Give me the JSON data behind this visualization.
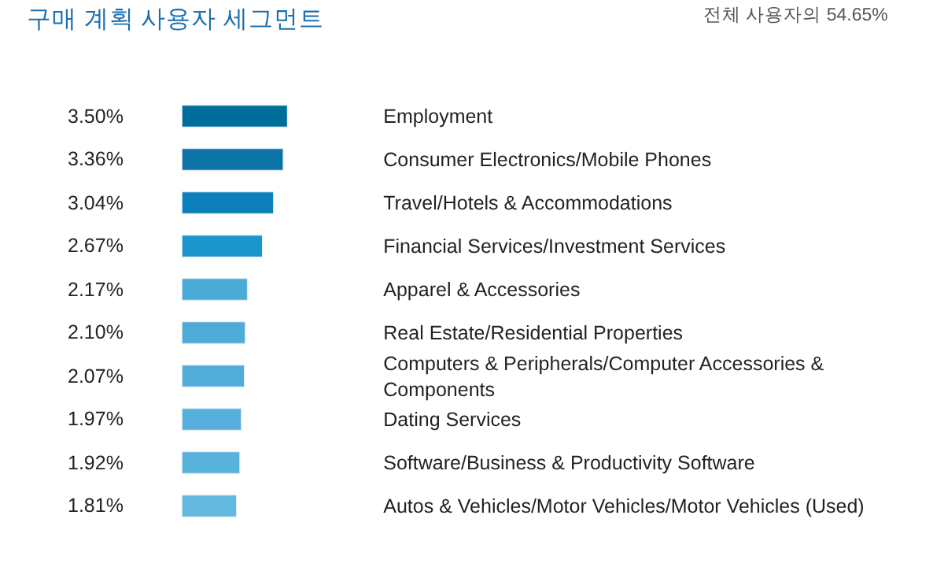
{
  "chart_data": {
    "type": "bar",
    "orientation": "horizontal",
    "title": "구매 계획 사용자 세그먼트",
    "subtitle": "전체 사용자의 54.65%",
    "categories": [
      "Employment",
      "Consumer Electronics/Mobile Phones",
      "Travel/Hotels & Accommodations",
      "Financial Services/Investment Services",
      "Apparel & Accessories",
      "Real Estate/Residential Properties",
      "Computers & Peripherals/Computer Accessories & Components",
      "Dating Services",
      "Software/Business & Productivity Software",
      "Autos & Vehicles/Motor Vehicles/Motor Vehicles (Used)"
    ],
    "values": [
      3.5,
      3.36,
      3.04,
      2.67,
      2.17,
      2.1,
      2.07,
      1.97,
      1.92,
      1.81
    ],
    "value_labels": [
      "3.50%",
      "3.36%",
      "3.04%",
      "2.67%",
      "2.17%",
      "2.10%",
      "2.07%",
      "1.97%",
      "1.92%",
      "1.81%"
    ],
    "colors": [
      "#006e9a",
      "#0b73a6",
      "#0b80ba",
      "#1a96cd",
      "#4aaad8",
      "#4eabd8",
      "#51acd8",
      "#56b0db",
      "#58b2dc",
      "#62b8de"
    ]
  }
}
